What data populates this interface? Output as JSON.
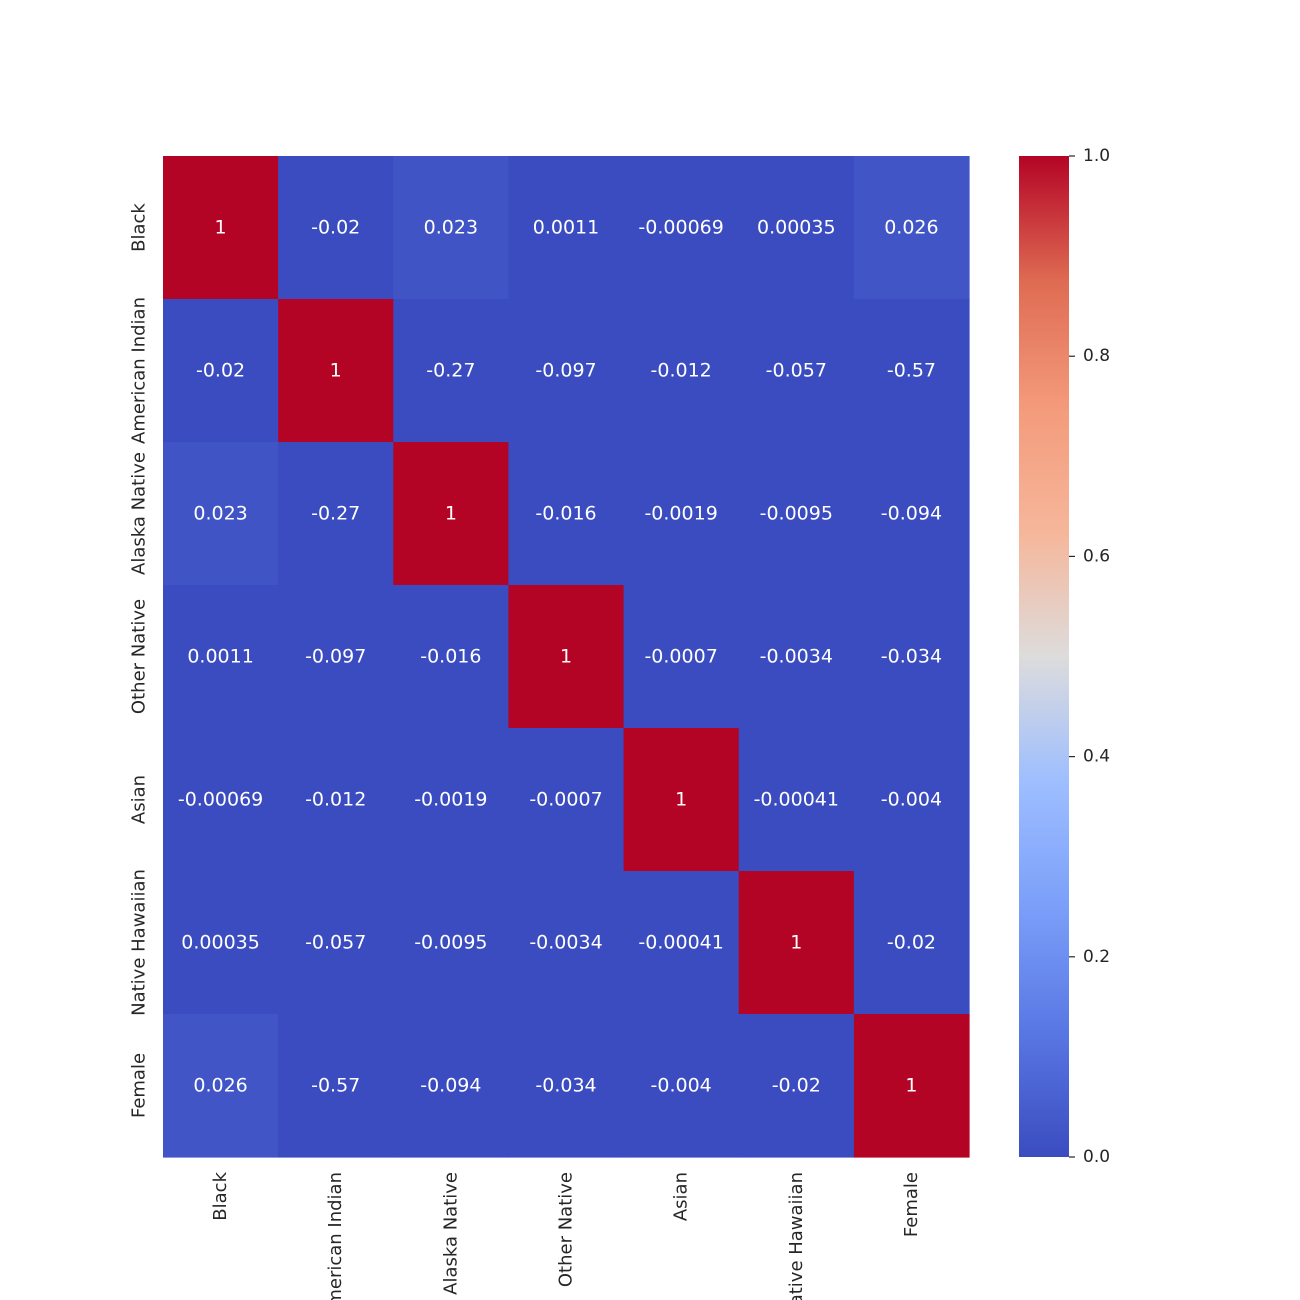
{
  "chart_data": {
    "type": "heatmap",
    "title": "",
    "xlabel": "",
    "ylabel": "",
    "categories": [
      "Black",
      "American Indian",
      "Alaska Native",
      "Other Native",
      "Asian",
      "Native Hawaiian",
      "Female"
    ],
    "values": [
      [
        1,
        -0.02,
        0.023,
        0.0011,
        -0.00069,
        0.00035,
        0.026
      ],
      [
        -0.02,
        1,
        -0.27,
        -0.097,
        -0.012,
        -0.057,
        -0.57
      ],
      [
        0.023,
        -0.27,
        1,
        -0.016,
        -0.0019,
        -0.0095,
        -0.094
      ],
      [
        0.0011,
        -0.097,
        -0.016,
        1,
        -0.0007,
        -0.0034,
        -0.034
      ],
      [
        -0.00069,
        -0.012,
        -0.0019,
        -0.0007,
        1,
        -0.00041,
        -0.004
      ],
      [
        0.00035,
        -0.057,
        -0.0095,
        -0.0034,
        -0.00041,
        1,
        -0.02
      ],
      [
        0.026,
        -0.57,
        -0.094,
        -0.034,
        -0.004,
        -0.02,
        1
      ]
    ],
    "annotations": [
      [
        "1",
        "-0.02",
        "0.023",
        "0.0011",
        "-0.00069",
        "0.00035",
        "0.026"
      ],
      [
        "-0.02",
        "1",
        "-0.27",
        "-0.097",
        "-0.012",
        "-0.057",
        "-0.57"
      ],
      [
        "0.023",
        "-0.27",
        "1",
        "-0.016",
        "-0.0019",
        "-0.0095",
        "-0.094"
      ],
      [
        "0.0011",
        "-0.097",
        "-0.016",
        "1",
        "-0.0007",
        "-0.0034",
        "-0.034"
      ],
      [
        "-0.00069",
        "-0.012",
        "-0.0019",
        "-0.0007",
        "1",
        "-0.00041",
        "-0.004"
      ],
      [
        "0.00035",
        "-0.057",
        "-0.0095",
        "-0.0034",
        "-0.00041",
        "1",
        "-0.02"
      ],
      [
        "0.026",
        "-0.57",
        "-0.094",
        "-0.034",
        "-0.004",
        "-0.02",
        "1"
      ]
    ],
    "colormap": "coolwarm",
    "color_range": [
      0.0,
      1.0
    ],
    "colorbar_ticks": [
      "0.0",
      "0.2",
      "0.4",
      "0.6",
      "0.8",
      "1.0"
    ],
    "grid": false,
    "legend": "colorbar-right"
  }
}
